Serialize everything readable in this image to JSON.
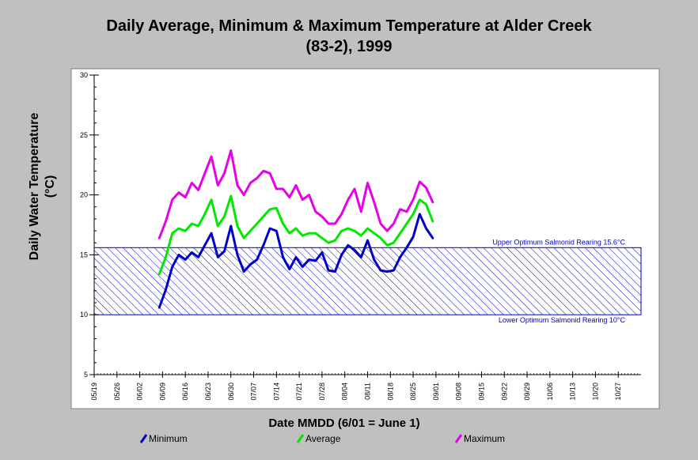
{
  "chart_data": {
    "type": "line",
    "title": "Daily Average, Minimum & Maximum Temperature at Alder Creek",
    "subtitle": "(83-2), 1999",
    "xlabel": "Date MMDD (6/01 = June 1)",
    "ylabel_line1": "Daily Water Temperature",
    "ylabel_line2": "(°C)",
    "ylim": [
      5,
      30
    ],
    "yticks": [
      5,
      10,
      15,
      20,
      25,
      30
    ],
    "xlim": [
      "05/19",
      "11/03"
    ],
    "xtick_labels": [
      "05/19",
      "05/26",
      "06/02",
      "06/09",
      "06/16",
      "06/23",
      "06/30",
      "07/07",
      "07/14",
      "07/21",
      "07/28",
      "08/04",
      "08/11",
      "08/18",
      "08/25",
      "09/01",
      "09/08",
      "09/15",
      "09/22",
      "09/29",
      "10/06",
      "10/13",
      "10/20",
      "10/27"
    ],
    "reference_band": {
      "upper": 15.6,
      "lower": 10,
      "upper_label": "Upper Optimum Salmonid Rearing 15.6°C",
      "lower_label": "Lower Optimum Salmonid Rearing 10°C",
      "color": "#0000c8"
    },
    "x_dates": [
      "06/08",
      "06/10",
      "06/12",
      "06/14",
      "06/16",
      "06/18",
      "06/20",
      "06/22",
      "06/24",
      "06/26",
      "06/28",
      "06/30",
      "07/02",
      "07/04",
      "07/06",
      "07/08",
      "07/10",
      "07/12",
      "07/14",
      "07/16",
      "07/18",
      "07/20",
      "07/22",
      "07/24",
      "07/26",
      "07/28",
      "07/30",
      "08/01",
      "08/03",
      "08/05",
      "08/07",
      "08/09",
      "08/11",
      "08/13",
      "08/15",
      "08/17",
      "08/19",
      "08/21",
      "08/23",
      "08/25",
      "08/27",
      "08/29",
      "08/31"
    ],
    "series": [
      {
        "name": "Minimum",
        "color": "#0000c8",
        "values": [
          10.6,
          12.1,
          14.0,
          15.0,
          14.6,
          15.2,
          14.8,
          15.8,
          16.8,
          14.8,
          15.3,
          17.4,
          15.0,
          13.6,
          14.2,
          14.6,
          15.8,
          17.2,
          17.0,
          14.8,
          13.8,
          14.8,
          14.0,
          14.6,
          14.5,
          15.2,
          13.7,
          13.6,
          15.0,
          15.8,
          15.4,
          14.8,
          16.2,
          14.6,
          13.7,
          13.6,
          13.7,
          14.8,
          15.6,
          16.5,
          18.4,
          17.2,
          16.4
        ]
      },
      {
        "name": "Average",
        "color": "#00e800",
        "values": [
          13.4,
          14.8,
          16.8,
          17.2,
          17.0,
          17.6,
          17.4,
          18.4,
          19.6,
          17.4,
          18.2,
          19.9,
          17.4,
          16.4,
          17.0,
          17.6,
          18.2,
          18.8,
          18.9,
          17.6,
          16.8,
          17.2,
          16.6,
          16.8,
          16.8,
          16.4,
          16.0,
          16.2,
          17.0,
          17.2,
          17.0,
          16.6,
          17.2,
          16.8,
          16.4,
          15.8,
          16.0,
          16.8,
          17.6,
          18.4,
          19.6,
          19.2,
          17.8
        ]
      },
      {
        "name": "Maximum",
        "color": "#e800e8",
        "values": [
          16.4,
          17.8,
          19.6,
          20.2,
          19.8,
          21.0,
          20.4,
          21.8,
          23.2,
          20.8,
          21.8,
          23.7,
          20.8,
          20.0,
          21.0,
          21.4,
          22.0,
          21.8,
          20.5,
          20.5,
          19.8,
          20.8,
          19.6,
          20.0,
          18.6,
          18.2,
          17.6,
          17.6,
          18.4,
          19.6,
          20.5,
          18.6,
          21.0,
          19.4,
          17.6,
          17.0,
          17.6,
          18.8,
          18.6,
          19.6,
          21.1,
          20.6,
          19.4
        ]
      }
    ],
    "legend_position": "bottom"
  }
}
